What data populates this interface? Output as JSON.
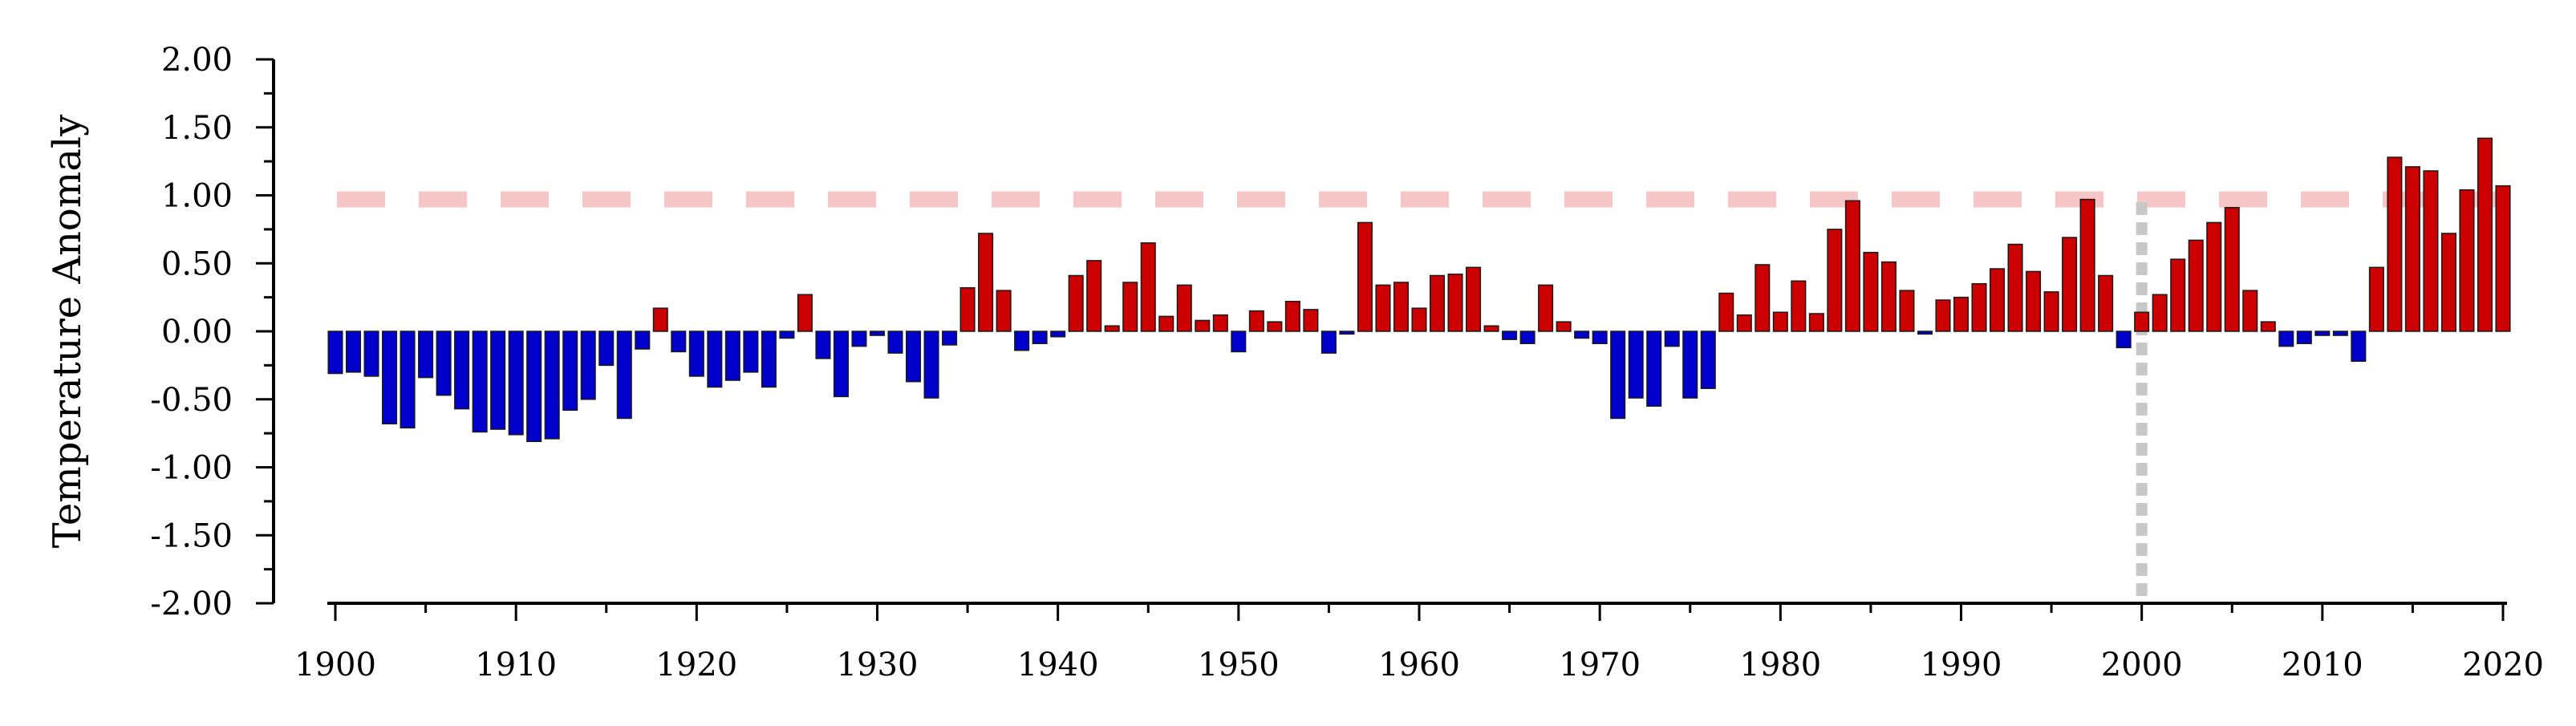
{
  "chart_data": {
    "type": "bar",
    "title": "",
    "xlabel": "",
    "ylabel": "Temperature Anomaly",
    "xlim": [
      1900,
      2020
    ],
    "ylim": [
      -2.0,
      2.0
    ],
    "y_ticks": [
      "2.00",
      "1.50",
      "1.00",
      "0.50",
      "0.00",
      "-0.50",
      "-1.00",
      "-1.50",
      "-2.00"
    ],
    "y_tick_values": [
      2.0,
      1.5,
      1.0,
      0.5,
      0.0,
      -0.5,
      -1.0,
      -1.5,
      -2.0
    ],
    "x_ticks": [
      "1900",
      "1910",
      "1920",
      "1930",
      "1940",
      "1950",
      "1960",
      "1970",
      "1980",
      "1990",
      "2000",
      "2010",
      "2020"
    ],
    "x_tick_values": [
      1900,
      1910,
      1920,
      1930,
      1940,
      1950,
      1960,
      1970,
      1980,
      1990,
      2000,
      2010,
      2020
    ],
    "grid": false,
    "colors": {
      "positive": "#cc0000",
      "negative": "#0000cc",
      "bar_edge": "#1a1a1a",
      "threshold_line": "#f7c6c6",
      "reference_line": "#c8c8c8"
    },
    "reference_lines": [
      {
        "axis": "y",
        "value": 0.97,
        "style": "dashed",
        "color": "#f7c6c6"
      },
      {
        "axis": "x",
        "value": 2000,
        "style": "dotted",
        "color": "#c8c8c8"
      }
    ],
    "years": [
      1900,
      1901,
      1902,
      1903,
      1904,
      1905,
      1906,
      1907,
      1908,
      1909,
      1910,
      1911,
      1912,
      1913,
      1914,
      1915,
      1916,
      1917,
      1918,
      1919,
      1920,
      1921,
      1922,
      1923,
      1924,
      1925,
      1926,
      1927,
      1928,
      1929,
      1930,
      1931,
      1932,
      1933,
      1934,
      1935,
      1936,
      1937,
      1938,
      1939,
      1940,
      1941,
      1942,
      1943,
      1944,
      1945,
      1946,
      1947,
      1948,
      1949,
      1950,
      1951,
      1952,
      1953,
      1954,
      1955,
      1956,
      1957,
      1958,
      1959,
      1960,
      1961,
      1962,
      1963,
      1964,
      1965,
      1966,
      1967,
      1968,
      1969,
      1970,
      1971,
      1972,
      1973,
      1974,
      1975,
      1976,
      1977,
      1978,
      1979,
      1980,
      1981,
      1982,
      1983,
      1984,
      1985,
      1986,
      1987,
      1988,
      1989,
      1990,
      1991,
      1992,
      1993,
      1994,
      1995,
      1996,
      1997,
      1998,
      1999,
      2000,
      2001,
      2002,
      2003,
      2004,
      2005,
      2006,
      2007,
      2008,
      2009,
      2010,
      2011,
      2012,
      2013,
      2014,
      2015,
      2016,
      2017,
      2018,
      2019,
      2020
    ],
    "values": [
      -0.31,
      -0.3,
      -0.33,
      -0.68,
      -0.71,
      -0.34,
      -0.47,
      -0.57,
      -0.74,
      -0.72,
      -0.76,
      -0.81,
      -0.79,
      -0.58,
      -0.5,
      -0.25,
      -0.64,
      -0.13,
      0.17,
      -0.15,
      -0.33,
      -0.41,
      -0.36,
      -0.3,
      -0.41,
      -0.05,
      0.27,
      -0.2,
      -0.48,
      -0.11,
      -0.03,
      -0.16,
      -0.37,
      -0.49,
      -0.1,
      0.32,
      0.72,
      0.3,
      -0.14,
      -0.09,
      -0.04,
      0.41,
      0.52,
      0.04,
      0.36,
      0.65,
      0.11,
      0.34,
      0.08,
      0.12,
      -0.15,
      0.15,
      0.07,
      0.22,
      0.16,
      -0.16,
      -0.02,
      0.8,
      0.34,
      0.36,
      0.17,
      0.41,
      0.42,
      0.47,
      0.04,
      -0.06,
      -0.09,
      0.34,
      0.07,
      -0.05,
      -0.09,
      -0.64,
      -0.49,
      -0.55,
      -0.11,
      -0.49,
      -0.42,
      0.28,
      0.12,
      0.49,
      0.14,
      0.37,
      0.13,
      0.75,
      0.96,
      0.58,
      0.51,
      0.3,
      -0.02,
      0.23,
      0.25,
      0.35,
      0.46,
      0.64,
      0.44,
      0.29,
      0.69,
      0.97,
      0.41,
      -0.12,
      0.14,
      0.27,
      0.53,
      0.67,
      0.8,
      0.91,
      0.3,
      0.07,
      -0.11,
      -0.09,
      -0.03,
      -0.03,
      -0.22,
      0.47,
      1.28,
      1.21,
      1.18,
      0.72,
      1.04,
      1.42,
      1.07
    ]
  }
}
